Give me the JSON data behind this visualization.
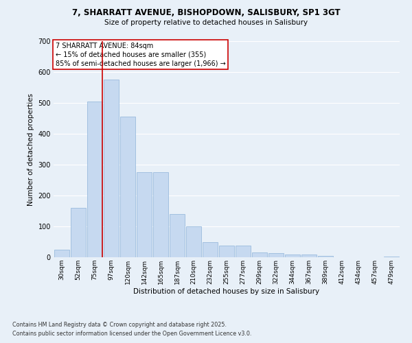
{
  "title_line1": "7, SHARRATT AVENUE, BISHOPDOWN, SALISBURY, SP1 3GT",
  "title_line2": "Size of property relative to detached houses in Salisbury",
  "xlabel": "Distribution of detached houses by size in Salisbury",
  "ylabel": "Number of detached properties",
  "categories": [
    "30sqm",
    "52sqm",
    "75sqm",
    "97sqm",
    "120sqm",
    "142sqm",
    "165sqm",
    "187sqm",
    "210sqm",
    "232sqm",
    "255sqm",
    "277sqm",
    "299sqm",
    "322sqm",
    "344sqm",
    "367sqm",
    "389sqm",
    "412sqm",
    "434sqm",
    "457sqm",
    "479sqm"
  ],
  "values": [
    25,
    160,
    505,
    575,
    455,
    275,
    275,
    140,
    100,
    48,
    38,
    38,
    15,
    13,
    10,
    8,
    5,
    0,
    0,
    0,
    2
  ],
  "bar_color": "#c6d9f0",
  "bar_edge_color": "#8db3d9",
  "background_color": "#e8f0f8",
  "plot_bg_color": "#e8f0f8",
  "grid_color": "#ffffff",
  "vline_x_index": 2,
  "vline_color": "#cc0000",
  "annotation_title": "7 SHARRATT AVENUE: 84sqm",
  "annotation_line1": "← 15% of detached houses are smaller (355)",
  "annotation_line2": "85% of semi-detached houses are larger (1,966) →",
  "annotation_box_color": "#ffffff",
  "annotation_box_edge": "#cc0000",
  "ylim": [
    0,
    700
  ],
  "yticks": [
    0,
    100,
    200,
    300,
    400,
    500,
    600,
    700
  ],
  "footnote_line1": "Contains HM Land Registry data © Crown copyright and database right 2025.",
  "footnote_line2": "Contains public sector information licensed under the Open Government Licence v3.0."
}
